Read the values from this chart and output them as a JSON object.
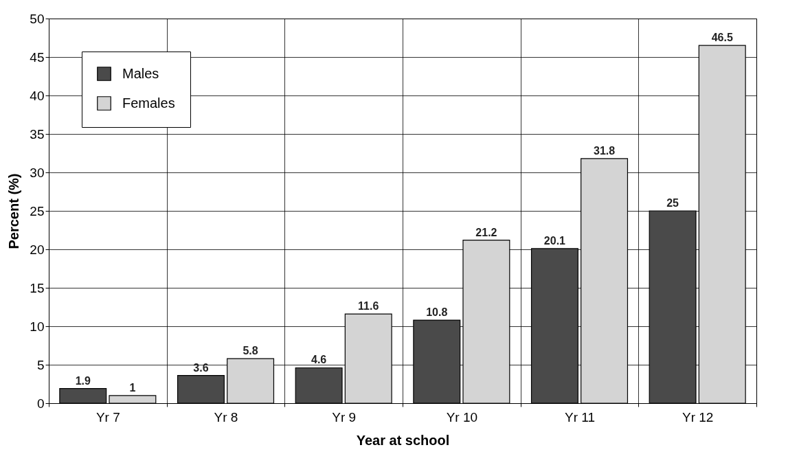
{
  "chart_data": {
    "type": "bar",
    "xlabel": "Year at school",
    "ylabel": "Percent (%)",
    "categories": [
      "Yr 7",
      "Yr 8",
      "Yr 9",
      "Yr 10",
      "Yr 11",
      "Yr 12"
    ],
    "series": [
      {
        "name": "Males",
        "color": "#4a4a4a",
        "values": [
          1.9,
          3.6,
          4.6,
          10.8,
          20.1,
          25
        ]
      },
      {
        "name": "Females",
        "color": "#d4d4d4",
        "values": [
          1,
          5.8,
          11.6,
          21.2,
          31.8,
          46.5
        ]
      }
    ],
    "ylim": [
      0,
      50
    ],
    "yticks": [
      0,
      5,
      10,
      15,
      20,
      25,
      30,
      35,
      40,
      45,
      50
    ],
    "grid": true,
    "legend": "top left",
    "data_labels": true
  }
}
